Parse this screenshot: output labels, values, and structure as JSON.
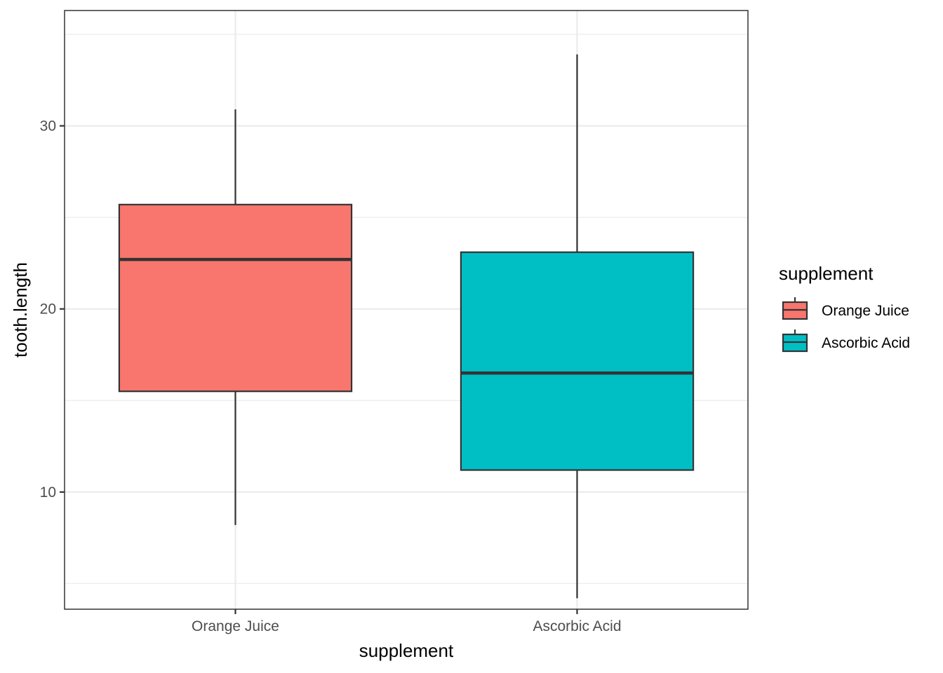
{
  "chart_data": {
    "type": "box",
    "xlabel": "supplement",
    "ylabel": "tooth.length",
    "ylim": [
      3.6,
      36.3
    ],
    "yticks": [
      10,
      20,
      30
    ],
    "minor_yticks": [
      5,
      15,
      25,
      35
    ],
    "grid": true,
    "legend": {
      "title": "supplement",
      "position": "right"
    },
    "categories": [
      "Orange Juice",
      "Ascorbic Acid"
    ],
    "series": [
      {
        "name": "Orange Juice",
        "color": "#F8766D",
        "min": 8.2,
        "q1": 15.5,
        "median": 22.7,
        "q3": 25.7,
        "max": 30.9
      },
      {
        "name": "Ascorbic Acid",
        "color": "#00BFC4",
        "min": 4.2,
        "q1": 11.2,
        "median": 16.5,
        "q3": 23.1,
        "max": 33.9
      }
    ]
  }
}
